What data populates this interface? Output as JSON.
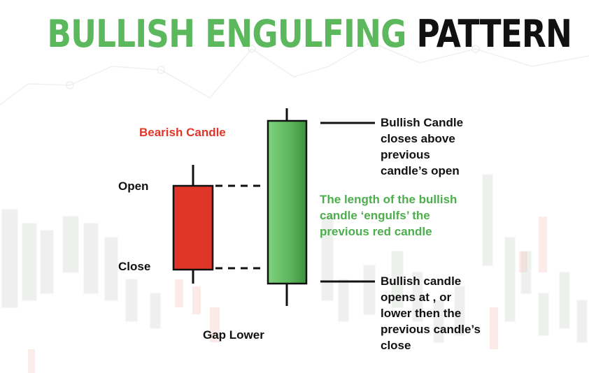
{
  "title": {
    "part_green": "BULLISH ENGULFING",
    "part_black": "PATTERN",
    "color_green": "#5cb85c",
    "color_black": "#111111"
  },
  "labels": {
    "bearish_candle": "Bearish Candle",
    "open": "Open",
    "close": "Close",
    "gap_lower": "Gap Lower",
    "bullish_closes": [
      "Bullish Candle",
      "closes above",
      "previous",
      "candle’s open"
    ],
    "engulfs": [
      "The length of the bullish",
      "candle ‘engulfs’ the",
      "previous red candle"
    ],
    "bullish_opens": [
      "Bullish candle",
      "opens at , or",
      "lower then the",
      "previous candle’s",
      "close"
    ]
  },
  "colors": {
    "bearish_candle": "#e0362a",
    "bullish_candle": "#5cb85c",
    "annotation_red": "#e0362a",
    "annotation_green": "#4cae4c",
    "background_chart": "#e9ece9"
  },
  "icons": {
    "bearish": "red-candlestick-icon",
    "bullish": "green-candlestick-icon"
  }
}
